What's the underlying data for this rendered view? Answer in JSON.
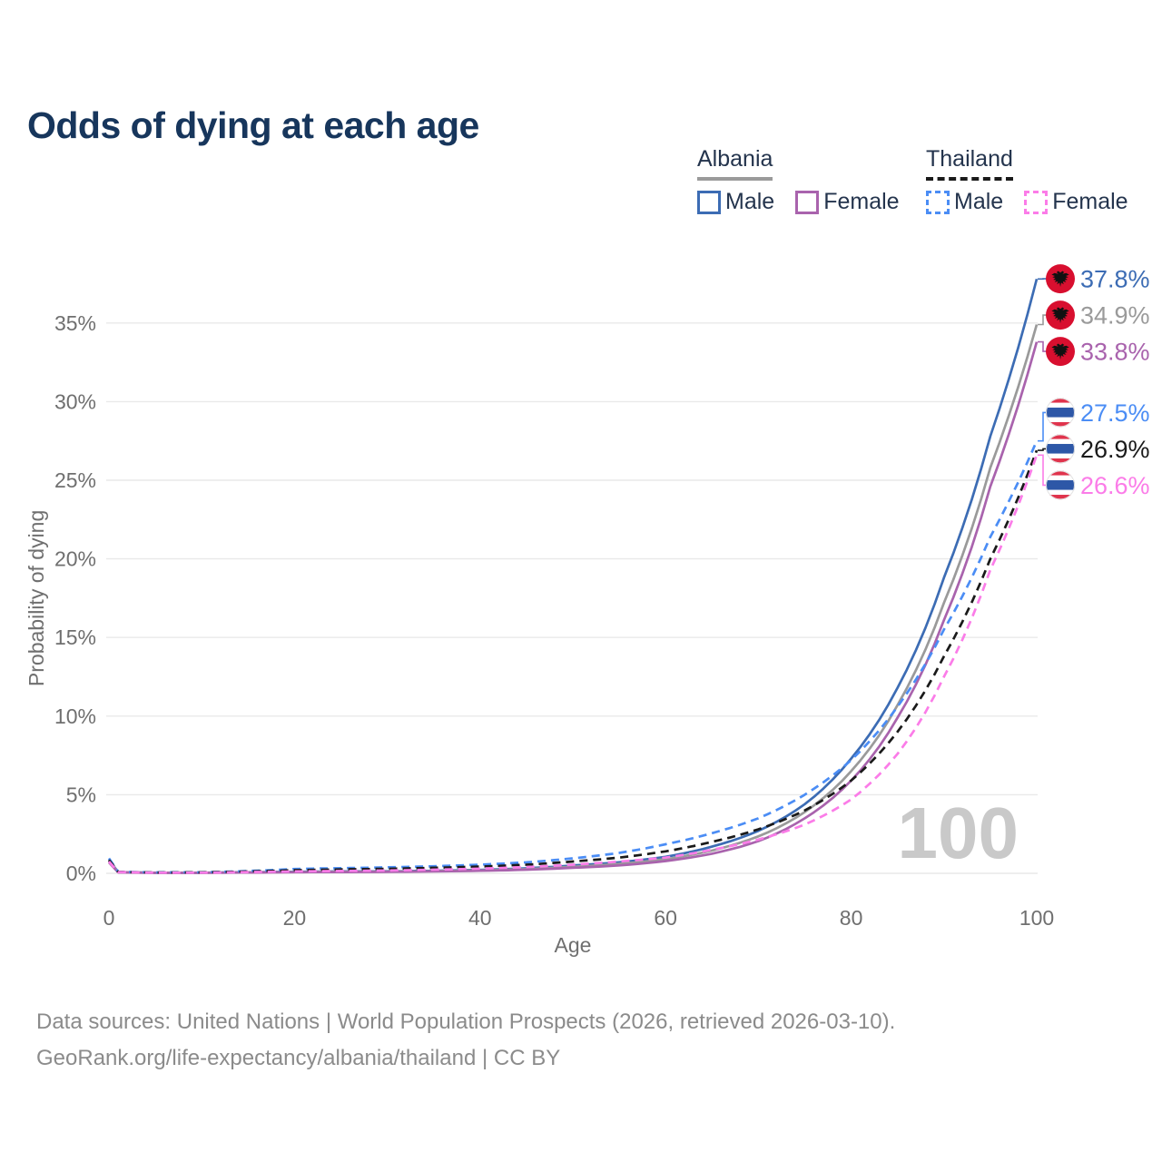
{
  "title": "Odds of dying at each age",
  "legend": {
    "groups": [
      {
        "name": "Albania",
        "line_style": "solid",
        "line_color": "#9a9a9a",
        "items": [
          {
            "label": "Male",
            "color": "#3c6cb4",
            "dashed": false
          },
          {
            "label": "Female",
            "color": "#a963ad",
            "dashed": false
          }
        ]
      },
      {
        "name": "Thailand",
        "line_style": "dashed",
        "line_color": "#1a1a1a",
        "items": [
          {
            "label": "Male",
            "color": "#4b8df5",
            "dashed": true
          },
          {
            "label": "Female",
            "color": "#fb7ce8",
            "dashed": true
          }
        ]
      }
    ]
  },
  "chart_data": {
    "type": "line",
    "title": "Odds of dying at each age",
    "xlabel": "Age",
    "ylabel": "Probability of dying",
    "xlim": [
      0,
      100
    ],
    "ylim_pct": [
      0,
      38.5
    ],
    "x_ticks": [
      0,
      20,
      40,
      60,
      80,
      100
    ],
    "y_tick_labels": [
      "0%",
      "5%",
      "10%",
      "15%",
      "20%",
      "25%",
      "30%",
      "35%"
    ],
    "y_ticks_pct": [
      0,
      5,
      10,
      15,
      20,
      25,
      30,
      35
    ],
    "grid": "horizontal",
    "legend_position": "top-right",
    "watermark": "100",
    "series": [
      {
        "id": "albania-male",
        "name": "Albania Male",
        "country": "Albania",
        "sex": "Male",
        "color": "#3c6cb4",
        "dashed": false,
        "end_label": "37.8%",
        "points": [
          [
            0,
            0.85
          ],
          [
            1,
            0.08
          ],
          [
            5,
            0.04
          ],
          [
            10,
            0.04
          ],
          [
            15,
            0.07
          ],
          [
            20,
            0.1
          ],
          [
            25,
            0.12
          ],
          [
            30,
            0.13
          ],
          [
            35,
            0.16
          ],
          [
            40,
            0.22
          ],
          [
            45,
            0.32
          ],
          [
            50,
            0.5
          ],
          [
            55,
            0.7
          ],
          [
            60,
            1.05
          ],
          [
            65,
            1.7
          ],
          [
            70,
            2.7
          ],
          [
            75,
            4.4
          ],
          [
            80,
            7.3
          ],
          [
            85,
            11.8
          ],
          [
            90,
            18.8
          ],
          [
            95,
            27.8
          ],
          [
            100,
            37.8
          ]
        ]
      },
      {
        "id": "albania-all",
        "name": "Albania (both sexes)",
        "country": "Albania",
        "sex": "All",
        "color": "#9a9a9a",
        "dashed": false,
        "end_label": "34.9%",
        "points": [
          [
            0,
            0.78
          ],
          [
            1,
            0.07
          ],
          [
            5,
            0.035
          ],
          [
            10,
            0.035
          ],
          [
            15,
            0.06
          ],
          [
            20,
            0.08
          ],
          [
            25,
            0.1
          ],
          [
            30,
            0.11
          ],
          [
            35,
            0.14
          ],
          [
            40,
            0.19
          ],
          [
            45,
            0.27
          ],
          [
            50,
            0.42
          ],
          [
            55,
            0.6
          ],
          [
            60,
            0.9
          ],
          [
            65,
            1.45
          ],
          [
            70,
            2.35
          ],
          [
            75,
            3.9
          ],
          [
            80,
            6.5
          ],
          [
            85,
            10.7
          ],
          [
            90,
            17.2
          ],
          [
            95,
            25.8
          ],
          [
            100,
            34.9
          ]
        ]
      },
      {
        "id": "albania-female",
        "name": "Albania Female",
        "country": "Albania",
        "sex": "Female",
        "color": "#a963ad",
        "dashed": false,
        "end_label": "33.8%",
        "points": [
          [
            0,
            0.7
          ],
          [
            1,
            0.06
          ],
          [
            5,
            0.03
          ],
          [
            10,
            0.03
          ],
          [
            15,
            0.05
          ],
          [
            20,
            0.07
          ],
          [
            25,
            0.08
          ],
          [
            30,
            0.09
          ],
          [
            35,
            0.12
          ],
          [
            40,
            0.16
          ],
          [
            45,
            0.23
          ],
          [
            50,
            0.35
          ],
          [
            55,
            0.5
          ],
          [
            60,
            0.78
          ],
          [
            65,
            1.25
          ],
          [
            70,
            2.05
          ],
          [
            75,
            3.5
          ],
          [
            80,
            5.9
          ],
          [
            85,
            9.9
          ],
          [
            90,
            16.1
          ],
          [
            95,
            24.6
          ],
          [
            100,
            33.8
          ]
        ]
      },
      {
        "id": "thailand-male",
        "name": "Thailand Male",
        "country": "Thailand",
        "sex": "Male",
        "color": "#4b8df5",
        "dashed": true,
        "end_label": "27.5%",
        "points": [
          [
            0,
            0.95
          ],
          [
            1,
            0.1
          ],
          [
            5,
            0.06
          ],
          [
            10,
            0.07
          ],
          [
            15,
            0.15
          ],
          [
            20,
            0.28
          ],
          [
            25,
            0.33
          ],
          [
            30,
            0.38
          ],
          [
            35,
            0.45
          ],
          [
            40,
            0.55
          ],
          [
            45,
            0.7
          ],
          [
            50,
            0.95
          ],
          [
            55,
            1.3
          ],
          [
            60,
            1.85
          ],
          [
            65,
            2.55
          ],
          [
            70,
            3.5
          ],
          [
            75,
            5.0
          ],
          [
            80,
            7.2
          ],
          [
            85,
            10.6
          ],
          [
            90,
            15.5
          ],
          [
            95,
            21.4
          ],
          [
            100,
            27.5
          ]
        ]
      },
      {
        "id": "thailand-all",
        "name": "Thailand (both sexes)",
        "country": "Thailand",
        "sex": "All",
        "color": "#1a1a1a",
        "dashed": true,
        "end_label": "26.9%",
        "points": [
          [
            0,
            0.85
          ],
          [
            1,
            0.09
          ],
          [
            5,
            0.05
          ],
          [
            10,
            0.06
          ],
          [
            15,
            0.12
          ],
          [
            20,
            0.2
          ],
          [
            25,
            0.25
          ],
          [
            30,
            0.29
          ],
          [
            35,
            0.35
          ],
          [
            40,
            0.43
          ],
          [
            45,
            0.55
          ],
          [
            50,
            0.75
          ],
          [
            55,
            1.0
          ],
          [
            60,
            1.4
          ],
          [
            65,
            2.0
          ],
          [
            70,
            2.8
          ],
          [
            75,
            4.0
          ],
          [
            80,
            5.9
          ],
          [
            85,
            9.0
          ],
          [
            90,
            13.8
          ],
          [
            95,
            20.0
          ],
          [
            100,
            26.9
          ]
        ]
      },
      {
        "id": "thailand-female",
        "name": "Thailand Female",
        "country": "Thailand",
        "sex": "Female",
        "color": "#fb7ce8",
        "dashed": true,
        "end_label": "26.6%",
        "points": [
          [
            0,
            0.75
          ],
          [
            1,
            0.08
          ],
          [
            5,
            0.04
          ],
          [
            10,
            0.04
          ],
          [
            15,
            0.08
          ],
          [
            20,
            0.12
          ],
          [
            25,
            0.15
          ],
          [
            30,
            0.18
          ],
          [
            35,
            0.23
          ],
          [
            40,
            0.3
          ],
          [
            45,
            0.4
          ],
          [
            50,
            0.55
          ],
          [
            55,
            0.75
          ],
          [
            60,
            1.0
          ],
          [
            65,
            1.5
          ],
          [
            70,
            2.15
          ],
          [
            75,
            3.1
          ],
          [
            80,
            4.7
          ],
          [
            85,
            7.6
          ],
          [
            90,
            12.5
          ],
          [
            95,
            19.3
          ],
          [
            100,
            26.6
          ]
        ]
      }
    ],
    "flag_colors": {
      "albania_red": "#d80f2f",
      "albania_eagle": "#111111",
      "thailand_red": "#e0334c",
      "thailand_white": "#ffffff",
      "thailand_blue": "#2d57a7"
    },
    "grid_color": "#e9e9e9"
  },
  "footer": {
    "lines": [
      "Data sources: United Nations | World Population Prospects (2026, retrieved 2026-03-10).",
      "GeoRank.org/life-expectancy/albania/thailand | CC BY"
    ]
  }
}
